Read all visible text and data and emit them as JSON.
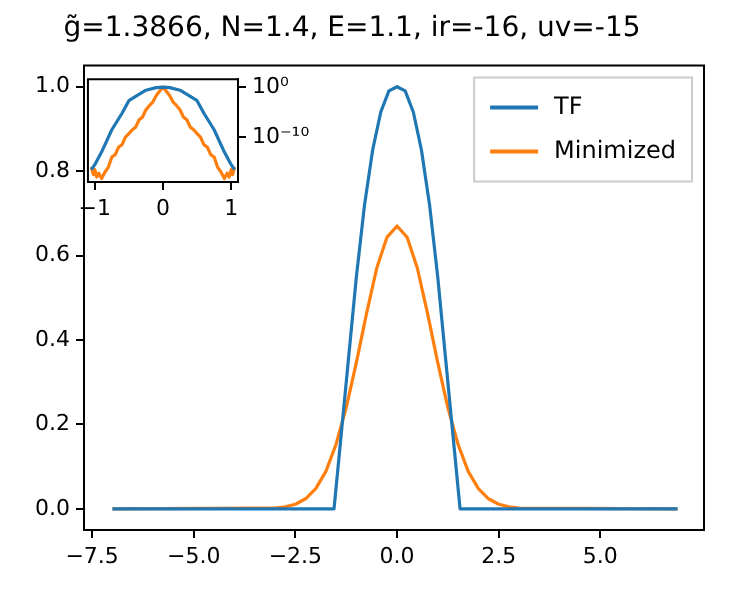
{
  "chart_data": [
    {
      "type": "line",
      "title": "g̃=1.3866, N=1.4, E=1.1, ir=-16, uv=-15",
      "xlim": [
        -7.7,
        7.55
      ],
      "ylim": [
        -0.05,
        1.05
      ],
      "xticks": [
        {
          "value": -7.5,
          "label": "−7.5"
        },
        {
          "value": -5,
          "label": "−5.0"
        },
        {
          "value": -2.5,
          "label": "−2.5"
        },
        {
          "value": 0,
          "label": "0.0"
        },
        {
          "value": 2.5,
          "label": "2.5"
        },
        {
          "value": 5,
          "label": "5.0"
        }
      ],
      "yticks": [
        {
          "value": 0,
          "label": "0.0"
        },
        {
          "value": 0.2,
          "label": "0.2"
        },
        {
          "value": 0.4,
          "label": "0.4"
        },
        {
          "value": 0.6,
          "label": "0.6"
        },
        {
          "value": 0.8,
          "label": "0.8"
        },
        {
          "value": 1,
          "label": "1.0"
        }
      ],
      "legend": "top right",
      "grid": false,
      "series": [
        {
          "name": "TF",
          "color": "#1f77b4",
          "x": [
            -7,
            -1.55,
            -1.4,
            -1.2,
            -1.0,
            -0.8,
            -0.6,
            -0.4,
            -0.2,
            0,
            0.2,
            0.4,
            0.6,
            0.8,
            1.0,
            1.2,
            1.4,
            1.55,
            6.9
          ],
          "values": [
            0,
            0,
            0.15,
            0.35,
            0.55,
            0.72,
            0.85,
            0.94,
            0.99,
            1.0,
            0.99,
            0.94,
            0.85,
            0.72,
            0.55,
            0.35,
            0.15,
            0,
            0
          ]
        },
        {
          "name": "Minimized",
          "color": "#ff7f0e",
          "x": [
            -7,
            -3,
            -2.75,
            -2.5,
            -2.25,
            -2,
            -1.75,
            -1.5,
            -1.25,
            -1,
            -0.75,
            -0.5,
            -0.25,
            0,
            0.25,
            0.5,
            0.75,
            1,
            1.25,
            1.5,
            1.75,
            2,
            2.25,
            2.5,
            2.75,
            3,
            6.9
          ],
          "values": [
            0,
            0.002,
            0.005,
            0.011,
            0.024,
            0.048,
            0.089,
            0.153,
            0.24,
            0.347,
            0.463,
            0.57,
            0.643,
            0.67,
            0.643,
            0.57,
            0.463,
            0.347,
            0.24,
            0.153,
            0.089,
            0.048,
            0.024,
            0.011,
            0.005,
            0.002,
            0
          ]
        }
      ]
    },
    {
      "type": "line",
      "log": "y",
      "xlim": [
        -1.1,
        1.1
      ],
      "ylim": [
        1e-19,
        40
      ],
      "xticks": [
        {
          "value": -1,
          "label": "−1"
        },
        0,
        1
      ],
      "yticks": [
        {
          "value": 1,
          "label": "10⁰"
        },
        {
          "value": 1e-10,
          "label": "10⁻¹⁰"
        }
      ],
      "grid": false,
      "series": [
        {
          "color": "#1f77b4",
          "x": [
            -1.05,
            -1,
            -0.9,
            -0.75,
            -0.6,
            -0.5,
            -0.4,
            -0.25,
            -0.1,
            0,
            0.1,
            0.25,
            0.4,
            0.5,
            0.6,
            0.75,
            0.9,
            1,
            1.05
          ],
          "values": [
            3e-17,
            3e-16,
            1e-13,
            3e-09,
            6e-06,
            0.002,
            0.015,
            0.25,
            0.8,
            1,
            0.8,
            0.25,
            0.015,
            0.002,
            6e-06,
            3e-09,
            1e-13,
            3e-16,
            3e-17
          ]
        },
        {
          "color": "#ff7f0e",
          "x": [
            -1.05,
            -1.02,
            -1.0,
            -0.97,
            -0.94,
            -0.9,
            -0.85,
            -0.8,
            -0.75,
            -0.7,
            -0.65,
            -0.6,
            -0.55,
            -0.5,
            -0.45,
            -0.4,
            -0.35,
            -0.3,
            -0.25,
            -0.2,
            -0.15,
            -0.1,
            -0.05,
            0,
            0.05,
            0.1,
            0.15,
            0.2,
            0.25,
            0.3,
            0.35,
            0.4,
            0.45,
            0.5,
            0.55,
            0.6,
            0.65,
            0.7,
            0.75,
            0.8,
            0.85,
            0.9,
            0.94,
            0.97,
            1.0,
            1.02,
            1.05
          ],
          "values": [
            1e-16,
            3e-18,
            3e-17,
            1e-18,
            6e-18,
            5e-19,
            1e-17,
            1e-16,
            1e-14,
            3e-14,
            1e-12,
            3e-12,
            1e-10,
            5e-10,
            3e-09,
            1e-08,
            3e-07,
            1e-06,
            3e-05,
            0.0002,
            0.001,
            0.02,
            0.15,
            1,
            0.15,
            0.02,
            0.001,
            0.0002,
            3e-05,
            1e-06,
            3e-07,
            1e-08,
            3e-09,
            5e-10,
            1e-10,
            3e-12,
            1e-12,
            3e-14,
            1e-14,
            1e-16,
            1e-17,
            5e-19,
            6e-18,
            1e-18,
            3e-17,
            3e-18,
            1e-16
          ]
        }
      ]
    }
  ]
}
